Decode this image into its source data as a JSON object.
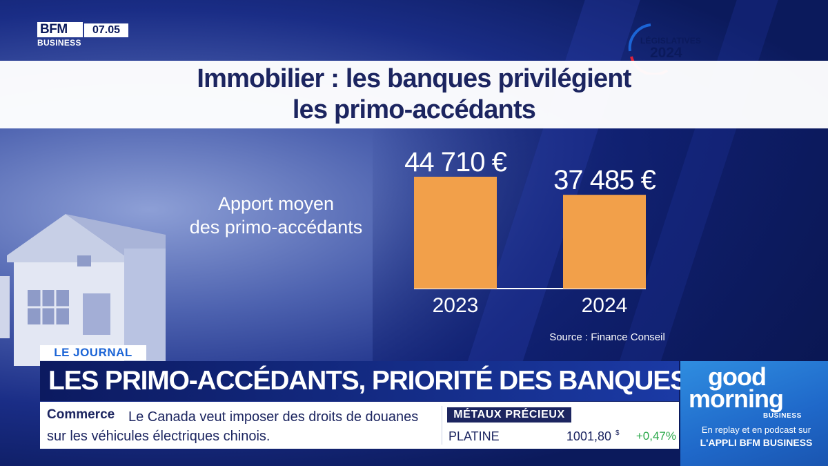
{
  "channel": {
    "logo_line1": "BFM",
    "logo_line2": "BUSINESS",
    "time": "07.05"
  },
  "badge": {
    "line1": "LÉGISLATIVES",
    "line2": "2024",
    "colors": {
      "blue": "#1b64d6",
      "red": "#e2233b"
    }
  },
  "infographic": {
    "title_line1": "Immobilier : les banques privilégient",
    "title_line2": "les primo-accédants",
    "subtitle_line1": "Apport moyen",
    "subtitle_line2": "des primo-accédants",
    "source": "Source : Finance Conseil"
  },
  "chart_data": {
    "type": "bar",
    "title": "Immobilier : les banques privilégient les primo-accédants",
    "categories": [
      "2023",
      "2024"
    ],
    "values": [
      44710,
      37485
    ],
    "value_labels": [
      "44 710 €",
      "37 485 €"
    ],
    "bar_color": "#f2a04a",
    "grid": false
  },
  "lower_third": {
    "tag": "LE JOURNAL",
    "headline": "LES PRIMO-ACCÉDANTS, PRIORITÉ DES BANQUES",
    "ticker_category": "Commerce",
    "ticker_line1": "Le Canada veut imposer des droits de douanes",
    "ticker_line2": "sur les véhicules électriques chinois."
  },
  "market": {
    "header": "MÉTAUX PRÉCIEUX",
    "name": "PLATINE",
    "price": "1001,80",
    "unit": "$",
    "change": "+0,47%",
    "change_color": "#2aa84a"
  },
  "promo": {
    "good": "good",
    "morning": "morning",
    "business": "BUSINESS",
    "line1": "En replay et en podcast sur",
    "line2": "L'APPLI BFM BUSINESS"
  }
}
